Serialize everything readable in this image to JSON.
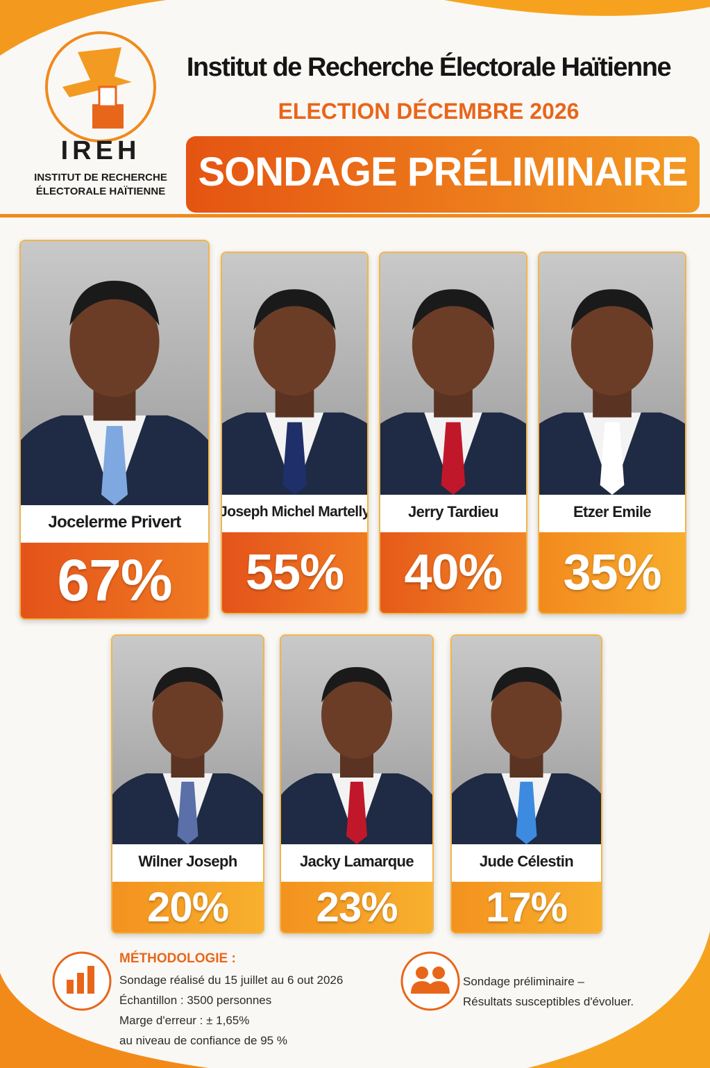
{
  "header": {
    "logo_acronym": "IREH",
    "logo_name_line1": "INSTITUT DE RECHERCHE",
    "logo_name_line2": "ÉLECTORALE HAÏTIENNE",
    "title": "Institut de Recherche Électorale Haïtienne",
    "subtitle": "ELECTION DÉCEMBRE 2026",
    "banner": "SONDAGE PRÉLIMINAIRE"
  },
  "candidates": [
    {
      "name": "Jocelerme Privert",
      "score": "67%"
    },
    {
      "name": "Joseph Michel Martelly",
      "score": "55%"
    },
    {
      "name": "Jerry Tardieu",
      "score": "40%"
    },
    {
      "name": "Etzer Emile",
      "score": "35%"
    },
    {
      "name": "Wilner Joseph",
      "score": "20%"
    },
    {
      "name": "Jacky Lamarque",
      "score": "23%"
    },
    {
      "name": "Jude Célestin",
      "score": "17%"
    }
  ],
  "footer": {
    "methodology_title": "MÉTHODOLOGIE :",
    "methodology_lines": [
      "Sondage réalisé du 15 juillet au 6 out 2026",
      "Échantillon : 3500 personnes",
      "Marge d'erreur : ± 1,65%",
      "au niveau de confiance de 95 %"
    ],
    "note_lines": [
      "Sondage préliminaire –",
      "Résultats susceptibles d'évoluer."
    ]
  }
}
